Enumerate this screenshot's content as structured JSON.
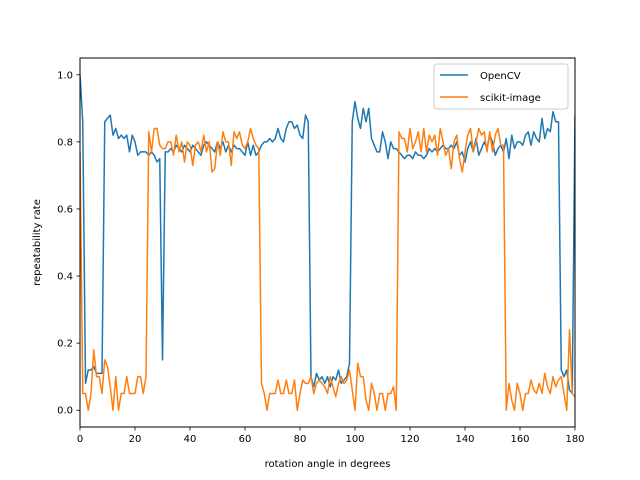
{
  "chart_data": {
    "type": "line",
    "title": "",
    "xlabel": "rotation angle in degrees",
    "ylabel": "repeatability rate",
    "xlim": [
      0,
      180
    ],
    "ylim": [
      -0.05,
      1.05
    ],
    "xticks": [
      0,
      20,
      40,
      60,
      80,
      100,
      120,
      140,
      160,
      180
    ],
    "xtick_labels": [
      "0",
      "20",
      "40",
      "60",
      "80",
      "100",
      "120",
      "140",
      "160",
      "180"
    ],
    "yticks": [
      0.0,
      0.2,
      0.4,
      0.6,
      0.8,
      1.0
    ],
    "ytick_labels": [
      "0.0",
      "0.2",
      "0.4",
      "0.6",
      "0.8",
      "1.0"
    ],
    "grid": false,
    "legend_position": "top-right",
    "x_step_degrees": 1,
    "series": [
      {
        "name": "OpenCV",
        "color": "#1f77b4",
        "values": [
          1.0,
          0.86,
          0.08,
          0.12,
          0.12,
          0.13,
          0.11,
          0.11,
          0.11,
          0.86,
          0.87,
          0.88,
          0.82,
          0.84,
          0.81,
          0.82,
          0.81,
          0.82,
          0.77,
          0.82,
          0.8,
          0.76,
          0.77,
          0.77,
          0.77,
          0.76,
          0.77,
          0.76,
          0.74,
          0.75,
          0.15,
          0.77,
          0.77,
          0.78,
          0.77,
          0.79,
          0.78,
          0.77,
          0.79,
          0.78,
          0.77,
          0.79,
          0.78,
          0.77,
          0.76,
          0.79,
          0.8,
          0.79,
          0.78,
          0.77,
          0.8,
          0.78,
          0.8,
          0.77,
          0.79,
          0.77,
          0.79,
          0.78,
          0.78,
          0.77,
          0.76,
          0.8,
          0.76,
          0.79,
          0.76,
          0.77,
          0.79,
          0.8,
          0.8,
          0.81,
          0.8,
          0.81,
          0.84,
          0.81,
          0.8,
          0.84,
          0.86,
          0.86,
          0.84,
          0.85,
          0.82,
          0.81,
          0.88,
          0.86,
          0.1,
          0.07,
          0.11,
          0.09,
          0.1,
          0.08,
          0.1,
          0.07,
          0.1,
          0.09,
          0.12,
          0.08,
          0.09,
          0.1,
          0.14,
          0.86,
          0.92,
          0.87,
          0.84,
          0.9,
          0.86,
          0.9,
          0.81,
          0.79,
          0.77,
          0.77,
          0.83,
          0.8,
          0.75,
          0.8,
          0.78,
          0.78,
          0.77,
          0.76,
          0.75,
          0.76,
          0.76,
          0.75,
          0.77,
          0.76,
          0.76,
          0.75,
          0.76,
          0.78,
          0.77,
          0.78,
          0.77,
          0.78,
          0.79,
          0.78,
          0.78,
          0.79,
          0.78,
          0.8,
          0.76,
          0.77,
          0.74,
          0.78,
          0.8,
          0.77,
          0.81,
          0.76,
          0.78,
          0.8,
          0.78,
          0.82,
          0.8,
          0.76,
          0.78,
          0.79,
          0.77,
          0.81,
          0.75,
          0.82,
          0.78,
          0.8,
          0.8,
          0.79,
          0.82,
          0.83,
          0.79,
          0.83,
          0.81,
          0.8,
          0.87,
          0.81,
          0.84,
          0.83,
          0.89,
          0.86,
          0.86,
          0.12,
          0.1,
          0.12,
          0.06,
          0.05,
          0.88
        ]
      },
      {
        "name": "scikit-image",
        "color": "#ff7f0e",
        "values": [
          0.77,
          0.05,
          0.05,
          0.0,
          0.05,
          0.18,
          0.1,
          0.1,
          0.05,
          0.15,
          0.13,
          0.07,
          0.0,
          0.1,
          0.0,
          0.05,
          0.05,
          0.1,
          0.05,
          0.05,
          0.05,
          0.1,
          0.1,
          0.05,
          0.1,
          0.83,
          0.77,
          0.84,
          0.84,
          0.79,
          0.78,
          0.78,
          0.8,
          0.8,
          0.76,
          0.82,
          0.77,
          0.8,
          0.74,
          0.8,
          0.79,
          0.73,
          0.79,
          0.8,
          0.77,
          0.82,
          0.77,
          0.8,
          0.71,
          0.72,
          0.8,
          0.76,
          0.83,
          0.8,
          0.8,
          0.73,
          0.83,
          0.81,
          0.83,
          0.79,
          0.78,
          0.8,
          0.84,
          0.81,
          0.79,
          0.78,
          0.08,
          0.05,
          0.0,
          0.05,
          0.05,
          0.05,
          0.09,
          0.05,
          0.05,
          0.09,
          0.05,
          0.05,
          0.09,
          0.0,
          0.05,
          0.09,
          0.08,
          0.08,
          0.1,
          0.05,
          0.08,
          0.09,
          0.08,
          0.07,
          0.05,
          0.1,
          0.07,
          0.04,
          0.08,
          0.1,
          0.08,
          0.09,
          0.12,
          0.06,
          0.0,
          0.14,
          0.1,
          0.1,
          0.03,
          0.0,
          0.08,
          0.05,
          0.0,
          0.05,
          0.05,
          0.0,
          0.05,
          0.05,
          0.07,
          0.0,
          0.83,
          0.81,
          0.81,
          0.77,
          0.84,
          0.78,
          0.8,
          0.83,
          0.77,
          0.84,
          0.77,
          0.82,
          0.8,
          0.82,
          0.76,
          0.84,
          0.8,
          0.76,
          0.78,
          0.72,
          0.8,
          0.82,
          0.75,
          0.71,
          0.77,
          0.82,
          0.84,
          0.77,
          0.8,
          0.84,
          0.82,
          0.83,
          0.77,
          0.83,
          0.77,
          0.82,
          0.84,
          0.79,
          0.79,
          0.0,
          0.08,
          0.03,
          0.0,
          0.08,
          0.05,
          0.0,
          0.05,
          0.05,
          0.09,
          0.06,
          0.05,
          0.08,
          0.05,
          0.11,
          0.07,
          0.05,
          0.1,
          0.07,
          0.09,
          0.1,
          0.05,
          0.0,
          0.24,
          0.05,
          0.04
        ]
      }
    ]
  }
}
